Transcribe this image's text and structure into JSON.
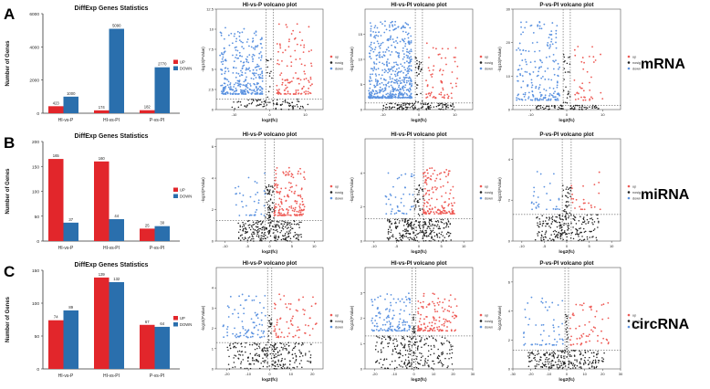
{
  "colors": {
    "up": "#e2262b",
    "down": "#2a6fad",
    "volcano_up": "#ee5a55",
    "volcano_down": "#5b92e0",
    "nosig": "#1f1f1f",
    "axis": "#333333"
  },
  "panel_letters": [
    "A",
    "B",
    "C"
  ],
  "row_labels": [
    "mRNA",
    "miRNA",
    "circRNA"
  ],
  "chart_data": [
    {
      "type": "bar",
      "row": 0,
      "title": "DiffExp Genes Statistics",
      "ylabel": "Number of Genes",
      "ylim": [
        0,
        6000
      ],
      "yticks": [
        0,
        2000,
        4000,
        6000
      ],
      "categories": [
        "HI-vs-P",
        "HI-vs-PI",
        "P-vs-PI"
      ],
      "series": [
        {
          "name": "UP",
          "values": [
            423,
            174,
            182
          ]
        },
        {
          "name": "DOWN",
          "values": [
            1000,
            5090,
            2770
          ]
        }
      ]
    },
    {
      "type": "bar",
      "row": 1,
      "title": "DiffExp Genes Statistics",
      "ylabel": "Number of Genes",
      "ylim": [
        0,
        200
      ],
      "yticks": [
        0,
        50,
        100,
        150,
        200
      ],
      "categories": [
        "HI-vs-P",
        "HI-vs-PI",
        "P-vs-PI"
      ],
      "series": [
        {
          "name": "UP",
          "values": [
            165,
            160,
            25
          ]
        },
        {
          "name": "DOWN",
          "values": [
            37,
            44,
            30
          ]
        }
      ]
    },
    {
      "type": "bar",
      "row": 2,
      "title": "DiffExp Genes Statistics",
      "ylabel": "Number of Genes",
      "ylim": [
        0,
        150
      ],
      "yticks": [
        0,
        50,
        100,
        150
      ],
      "categories": [
        "HI-vs-P",
        "HI-vs-PI",
        "P-vs-PI"
      ],
      "series": [
        {
          "name": "UP",
          "values": [
            74,
            139,
            67
          ]
        },
        {
          "name": "DOWN",
          "values": [
            89,
            132,
            64
          ]
        }
      ]
    },
    {
      "type": "scatter",
      "row": 0,
      "col": 0,
      "title": "HI-vs-P volcano plot",
      "xlabel": "log2(fc)",
      "ylabel": "-log10(FValue)",
      "xlim": [
        -15,
        15
      ],
      "ylim": [
        0,
        12.5
      ],
      "xticks": [
        -10,
        0,
        10
      ],
      "yticks": [
        0,
        2.5,
        5,
        7.5,
        10,
        12.5
      ],
      "fc_cut": 1,
      "p_cut": 1.3,
      "legend": [
        "up",
        "nosig",
        "down"
      ],
      "counts": {
        "up": 120,
        "down": 340,
        "nosig": 100
      },
      "spread": {
        "up": [
          2,
          12,
          6
        ],
        "down": [
          2,
          14,
          5
        ]
      }
    },
    {
      "type": "scatter",
      "row": 0,
      "col": 1,
      "title": "HI-vs-PI volcano plot",
      "xlabel": "log2(fc)",
      "ylabel": "-log10(FValue)",
      "xlim": [
        -15,
        15
      ],
      "ylim": [
        0,
        20
      ],
      "xticks": [
        -10,
        0,
        10
      ],
      "yticks": [
        0,
        5,
        10,
        15
      ],
      "fc_cut": 1,
      "p_cut": 1.3,
      "legend": [
        "up",
        "nosig",
        "down"
      ],
      "counts": {
        "up": 70,
        "down": 520,
        "nosig": 160
      },
      "spread": {
        "up": [
          2,
          11,
          3
        ],
        "down": [
          2,
          14,
          6
        ]
      }
    },
    {
      "type": "scatter",
      "row": 0,
      "col": 2,
      "title": "P-vs-PI volcano plot",
      "xlabel": "log2(fc)",
      "ylabel": "-log10(FValue)",
      "xlim": [
        -15,
        15
      ],
      "ylim": [
        0,
        30
      ],
      "xticks": [
        -10,
        0,
        10
      ],
      "yticks": [
        0,
        10,
        20,
        30
      ],
      "fc_cut": 1,
      "p_cut": 1.3,
      "legend": [
        "up",
        "nosig",
        "down"
      ],
      "counts": {
        "up": 40,
        "down": 200,
        "nosig": 100
      },
      "spread": {
        "up": [
          2,
          10,
          3
        ],
        "down": [
          2,
          14,
          6
        ]
      }
    },
    {
      "type": "scatter",
      "row": 1,
      "col": 0,
      "title": "HI-vs-P volcano plot",
      "xlabel": "log2(fc)",
      "ylabel": "-log10(FValue)",
      "xlim": [
        -12,
        12
      ],
      "ylim": [
        0,
        6.5
      ],
      "xticks": [
        -10,
        -5,
        0,
        5,
        10
      ],
      "yticks": [
        0,
        2,
        4,
        6
      ],
      "fc_cut": 1,
      "p_cut": 1.3,
      "legend": [
        "up",
        "nosig",
        "down"
      ],
      "counts": {
        "up": 160,
        "down": 35,
        "nosig": 300
      },
      "spread": {
        "up": [
          1,
          8,
          3
        ],
        "down": [
          1,
          8,
          2
        ]
      }
    },
    {
      "type": "scatter",
      "row": 1,
      "col": 1,
      "title": "HI-vs-PI volcano plot",
      "xlabel": "log2(fc)",
      "ylabel": "-log10(FValue)",
      "xlim": [
        -12,
        12
      ],
      "ylim": [
        0,
        6
      ],
      "xticks": [
        -10,
        -5,
        0,
        5,
        10
      ],
      "yticks": [
        0,
        2,
        4
      ],
      "fc_cut": 1,
      "p_cut": 1.3,
      "legend": [
        "up",
        "nosig",
        "down"
      ],
      "counts": {
        "up": 150,
        "down": 45,
        "nosig": 300
      },
      "spread": {
        "up": [
          1,
          8,
          3
        ],
        "down": [
          1,
          8,
          2
        ]
      }
    },
    {
      "type": "scatter",
      "row": 1,
      "col": 2,
      "title": "P-vs-PI volcano plot",
      "xlabel": "log2(fc)",
      "ylabel": "-log10(FValue)",
      "xlim": [
        -12,
        12
      ],
      "ylim": [
        0,
        5
      ],
      "xticks": [
        -10,
        -5,
        0,
        5,
        10
      ],
      "yticks": [
        0,
        2,
        4
      ],
      "fc_cut": 1,
      "p_cut": 1.3,
      "legend": [
        "up",
        "nosig",
        "down"
      ],
      "counts": {
        "up": 25,
        "down": 30,
        "nosig": 250
      },
      "spread": {
        "up": [
          1,
          8,
          2
        ],
        "down": [
          1,
          8,
          2
        ]
      }
    },
    {
      "type": "scatter",
      "row": 2,
      "col": 0,
      "title": "HI-vs-P volcano plot",
      "xlabel": "log2(fc)",
      "ylabel": "-log10(FValue)",
      "xlim": [
        -25,
        25
      ],
      "ylim": [
        0,
        5
      ],
      "xticks": [
        -20,
        -10,
        0,
        10,
        20
      ],
      "yticks": [
        0,
        1,
        2,
        3,
        4
      ],
      "fc_cut": 1,
      "p_cut": 1.3,
      "legend": [
        "up",
        "nosig",
        "down"
      ],
      "counts": {
        "up": 70,
        "down": 85,
        "nosig": 260
      },
      "spread": {
        "up": [
          2,
          22,
          3
        ],
        "down": [
          2,
          22,
          3
        ]
      }
    },
    {
      "type": "scatter",
      "row": 2,
      "col": 1,
      "title": "HI-vs-PI volcano plot",
      "xlabel": "log2(fc)",
      "ylabel": "-log10(FValue)",
      "xlim": [
        -25,
        30
      ],
      "ylim": [
        0,
        4
      ],
      "xticks": [
        -20,
        -10,
        0,
        10,
        20,
        30
      ],
      "yticks": [
        0,
        1,
        2,
        3
      ],
      "fc_cut": 1,
      "p_cut": 1.3,
      "legend": [
        "up",
        "nosig",
        "down"
      ],
      "counts": {
        "up": 130,
        "down": 125,
        "nosig": 260
      },
      "spread": {
        "up": [
          2,
          22,
          3
        ],
        "down": [
          2,
          22,
          3
        ]
      }
    },
    {
      "type": "scatter",
      "row": 2,
      "col": 2,
      "title": "P-vs-PI volcano plot",
      "xlabel": "log2(fc)",
      "ylabel": "-log10(FValue)",
      "xlim": [
        -30,
        30
      ],
      "ylim": [
        0,
        7
      ],
      "xticks": [
        -30,
        -20,
        -10,
        0,
        10,
        20,
        30
      ],
      "yticks": [
        0,
        2,
        4,
        6
      ],
      "fc_cut": 1,
      "p_cut": 1.3,
      "legend": [
        "up",
        "nosig",
        "down"
      ],
      "counts": {
        "up": 60,
        "down": 55,
        "nosig": 240
      },
      "spread": {
        "up": [
          2,
          24,
          3
        ],
        "down": [
          2,
          24,
          3
        ]
      }
    }
  ]
}
